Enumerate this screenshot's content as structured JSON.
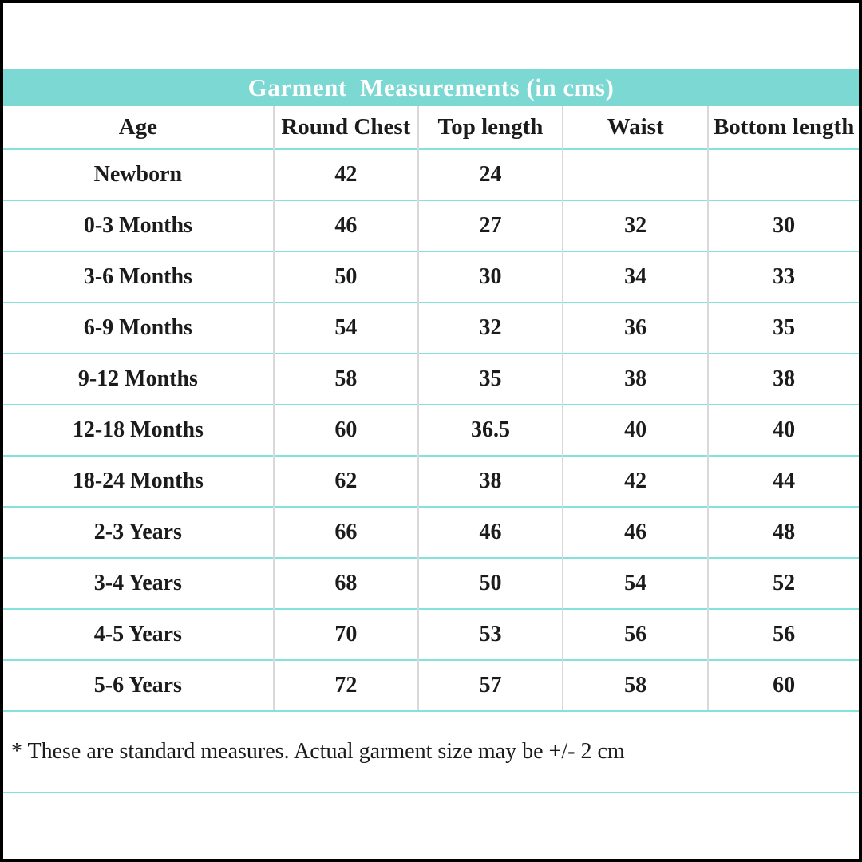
{
  "title": "Garment  Measurements (in cms)",
  "colors": {
    "banner_background": "#7bd8d2",
    "banner_text": "#ffffff",
    "row_separator": "#84e2dc",
    "column_separator": "#d9d9d9",
    "frame": "#000000",
    "text": "#1b1b1b"
  },
  "table": {
    "headers": [
      "Age",
      "Round Chest",
      "Top length",
      "Waist",
      "Bottom length"
    ],
    "rows": [
      [
        "Newborn",
        "42",
        "24",
        "",
        ""
      ],
      [
        "0-3 Months",
        "46",
        "27",
        "32",
        "30"
      ],
      [
        "3-6 Months",
        "50",
        "30",
        "34",
        "33"
      ],
      [
        "6-9 Months",
        "54",
        "32",
        "36",
        "35"
      ],
      [
        "9-12 Months",
        "58",
        "35",
        "38",
        "38"
      ],
      [
        "12-18 Months",
        "60",
        "36.5",
        "40",
        "40"
      ],
      [
        "18-24 Months",
        "62",
        "38",
        "42",
        "44"
      ],
      [
        "2-3 Years",
        "66",
        "46",
        "46",
        "48"
      ],
      [
        "3-4 Years",
        "68",
        "50",
        "54",
        "52"
      ],
      [
        "4-5 Years",
        "70",
        "53",
        "56",
        "56"
      ],
      [
        "5-6 Years",
        "72",
        "57",
        "58",
        "60"
      ]
    ]
  },
  "footnote": "* These are standard measures. Actual garment size may be +/- 2 cm"
}
